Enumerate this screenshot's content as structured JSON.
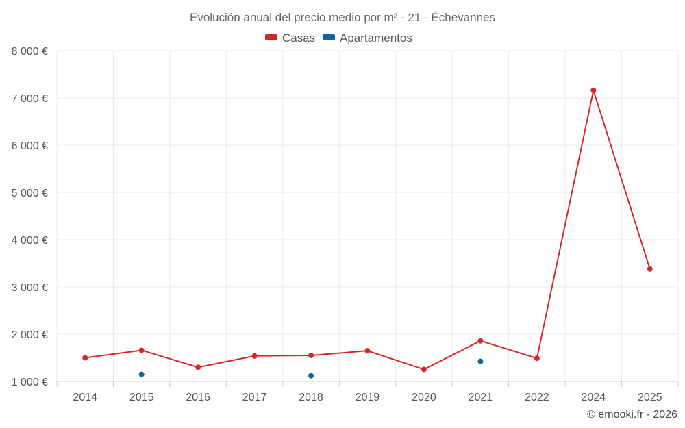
{
  "chart_data": {
    "type": "line",
    "title": "Evolución anual del precio medio por m² - 21 - Échevannes",
    "categories": [
      "2014",
      "2015",
      "2016",
      "2017",
      "2018",
      "2019",
      "2020",
      "2021",
      "2022",
      "2024",
      "2025"
    ],
    "y_tick_labels": [
      "8 000 €",
      "7 000 €",
      "6 000 €",
      "5 000 €",
      "4 000 €",
      "3 000 €",
      "2 000 €",
      "1 000 €"
    ],
    "y_ticks": [
      8000,
      7000,
      6000,
      5000,
      4000,
      3000,
      2000,
      1000
    ],
    "ylim": [
      1000,
      8000
    ],
    "grid": true,
    "legend_position": "top-center",
    "series": [
      {
        "name": "Casas",
        "color": "#d62728",
        "style": "line",
        "values": [
          1500,
          1660,
          1300,
          1540,
          1550,
          1650,
          1255,
          1860,
          1490,
          7160,
          3380
        ]
      },
      {
        "name": "Apartamentos",
        "color": "#0b6699",
        "style": "points",
        "values": [
          null,
          1150,
          null,
          null,
          1120,
          null,
          null,
          1425,
          null,
          null,
          null
        ]
      }
    ]
  },
  "credit": "© emooki.fr - 2026"
}
